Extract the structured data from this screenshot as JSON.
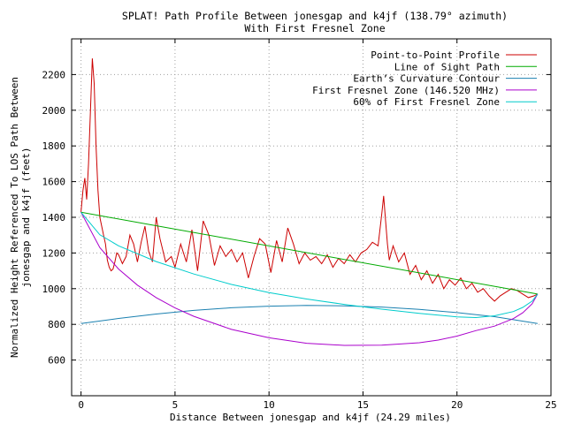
{
  "chart_data": {
    "type": "line",
    "title": "SPLAT! Path Profile Between jonesgap and k4jf (138.79° azimuth)",
    "subtitle": "With First Fresnel Zone",
    "xlabel": "Distance Between jonesgap and k4jf (24.29 miles)",
    "ylabel_line1": "Normalized Height Referenced To LOS Path Between",
    "ylabel_line2": "jonesgap and k4jf (feet)",
    "xlim": [
      -0.5,
      25
    ],
    "ylim": [
      400,
      2400
    ],
    "xticks": [
      0,
      5,
      10,
      15,
      20,
      25
    ],
    "yticks": [
      600,
      800,
      1000,
      1200,
      1400,
      1600,
      1800,
      2000,
      2200
    ],
    "grid": true,
    "legend_position": "top-right",
    "series": [
      {
        "name": "Point-to-Point Profile",
        "color": "#cc0000",
        "x": [
          0,
          0.1,
          0.2,
          0.3,
          0.4,
          0.5,
          0.6,
          0.7,
          0.8,
          0.9,
          1.0,
          1.1,
          1.2,
          1.3,
          1.4,
          1.5,
          1.6,
          1.7,
          1.8,
          1.9,
          2.0,
          2.2,
          2.4,
          2.6,
          2.8,
          3.0,
          3.2,
          3.4,
          3.6,
          3.8,
          4.0,
          4.2,
          4.5,
          4.8,
          5.0,
          5.3,
          5.6,
          5.9,
          6.2,
          6.5,
          6.8,
          7.1,
          7.4,
          7.7,
          8.0,
          8.3,
          8.6,
          8.9,
          9.2,
          9.5,
          9.8,
          10.1,
          10.4,
          10.7,
          11.0,
          11.3,
          11.6,
          11.9,
          12.2,
          12.5,
          12.8,
          13.1,
          13.4,
          13.7,
          14.0,
          14.3,
          14.6,
          14.9,
          15.2,
          15.5,
          15.8,
          16.0,
          16.1,
          16.2,
          16.3,
          16.4,
          16.6,
          16.9,
          17.2,
          17.5,
          17.8,
          18.1,
          18.4,
          18.7,
          19.0,
          19.3,
          19.6,
          19.9,
          20.2,
          20.5,
          20.8,
          21.1,
          21.4,
          21.7,
          22.0,
          22.3,
          22.6,
          22.9,
          23.2,
          23.5,
          23.8,
          24.1,
          24.29
        ],
        "y": [
          1430,
          1550,
          1620,
          1500,
          1700,
          2000,
          2290,
          2150,
          1800,
          1550,
          1400,
          1350,
          1300,
          1250,
          1160,
          1120,
          1100,
          1110,
          1150,
          1200,
          1190,
          1140,
          1180,
          1300,
          1250,
          1150,
          1260,
          1350,
          1210,
          1150,
          1400,
          1280,
          1150,
          1180,
          1120,
          1250,
          1150,
          1330,
          1100,
          1380,
          1300,
          1130,
          1240,
          1180,
          1220,
          1150,
          1200,
          1060,
          1180,
          1280,
          1250,
          1090,
          1270,
          1150,
          1340,
          1250,
          1140,
          1200,
          1160,
          1180,
          1140,
          1190,
          1120,
          1170,
          1140,
          1190,
          1150,
          1200,
          1220,
          1260,
          1240,
          1420,
          1520,
          1380,
          1250,
          1160,
          1240,
          1150,
          1200,
          1080,
          1130,
          1050,
          1100,
          1030,
          1080,
          1000,
          1050,
          1020,
          1060,
          1000,
          1030,
          980,
          1000,
          960,
          930,
          960,
          980,
          1000,
          990,
          970,
          950,
          960,
          970
        ]
      },
      {
        "name": "Line of Sight Path",
        "color": "#00aa00",
        "x": [
          0,
          24.29
        ],
        "y": [
          1428,
          970
        ]
      },
      {
        "name": "Earth’s Curvature Contour",
        "color": "#1a80b0",
        "x": [
          0,
          2,
          4,
          6,
          8,
          10,
          12,
          14,
          16,
          18,
          20,
          22,
          24.29
        ],
        "y": [
          805,
          833,
          858,
          878,
          893,
          902,
          906,
          904,
          897,
          884,
          866,
          843,
          805
        ]
      },
      {
        "name": "First Fresnel Zone (146.520 MHz)",
        "color": "#aa00cc",
        "x": [
          0,
          1,
          2,
          3,
          4,
          5,
          6,
          8,
          10,
          12,
          14,
          16,
          18,
          19,
          20,
          21,
          22,
          23,
          23.5,
          24,
          24.29
        ],
        "y": [
          1428,
          1230,
          1110,
          1020,
          950,
          892,
          845,
          772,
          725,
          694,
          682,
          683,
          697,
          712,
          734,
          765,
          790,
          832,
          865,
          915,
          970
        ]
      },
      {
        "name": "60% of First Fresnel Zone",
        "color": "#00cccc",
        "x": [
          0,
          1,
          2,
          4,
          6,
          8,
          10,
          12,
          14,
          16,
          18,
          20,
          21,
          22,
          23,
          23.5,
          24,
          24.29
        ],
        "y": [
          1428,
          1302,
          1240,
          1152,
          1082,
          1024,
          978,
          942,
          912,
          885,
          862,
          842,
          838,
          848,
          872,
          895,
          930,
          970
        ]
      }
    ]
  }
}
